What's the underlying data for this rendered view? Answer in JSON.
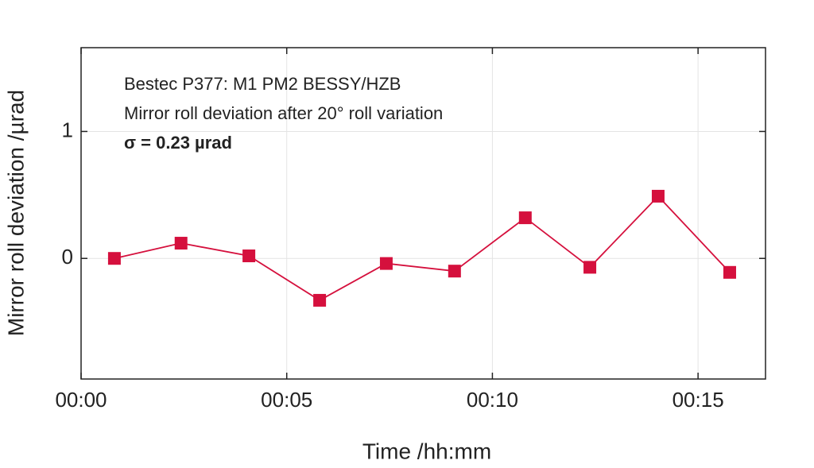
{
  "chart_data": {
    "type": "line",
    "x_label": "Time /hh:mm",
    "y_label": "Mirror roll deviation /µrad",
    "annotations": [
      "Bestec P377: M1 PM2 BESSY/HZB",
      "Mirror roll deviation after 20° roll variation",
      "σ = 0.23 µrad"
    ],
    "x": [
      0.81,
      2.43,
      4.08,
      5.8,
      7.42,
      9.08,
      10.8,
      12.37,
      14.03,
      15.77
    ],
    "series": [
      {
        "color": "#d5103d",
        "values": [
          0,
          0.12,
          0.02,
          -0.33,
          -0.04,
          -0.1,
          0.32,
          -0.07,
          0.49,
          -0.11
        ]
      }
    ],
    "xlim": [
      0,
      16.64
    ],
    "xticks": [
      {
        "value": 0,
        "label": "00:00"
      },
      {
        "value": 5,
        "label": "00:05"
      },
      {
        "value": 10,
        "label": "00:10"
      },
      {
        "value": 15,
        "label": "00:15"
      }
    ],
    "ylim": [
      -0.95,
      1.66
    ],
    "yticks": [
      0,
      1
    ],
    "grid": true
  }
}
